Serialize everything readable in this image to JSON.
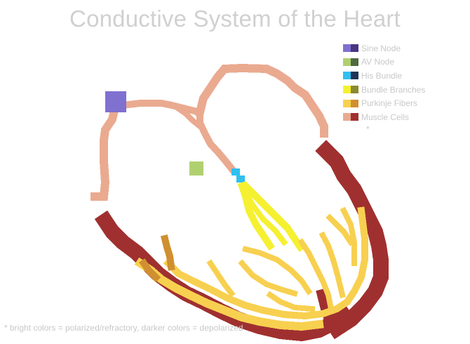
{
  "title": "Conductive System of the Heart",
  "legend": {
    "items": [
      {
        "label": "Sine Node",
        "bright": "#8070d0",
        "dark": "#4a3580"
      },
      {
        "label": "AV Node",
        "bright": "#b0d070",
        "dark": "#4f6a3f"
      },
      {
        "label": "His Bundle",
        "bright": "#30c0f0",
        "dark": "#203555"
      },
      {
        "label": "Bundle Branches",
        "bright": "#f5f030",
        "dark": "#8a8a30"
      },
      {
        "label": "Purkinje Fibers",
        "bright": "#f8d050",
        "dark": "#d09030"
      },
      {
        "label": "Muscle Cells",
        "bright": "#eaaa90",
        "dark": "#a03030"
      }
    ],
    "asterisk": "*"
  },
  "footnote": "* bright colors = polarized/refractory, darker colors = depolarized",
  "colors": {
    "title": "#d0d0d0",
    "text": "#c8c8c8",
    "muscle_bright": "#eaaa90",
    "muscle_dark": "#a03030",
    "sine": "#8070d0",
    "av": "#b0d070",
    "his": "#30c0f0",
    "branches": "#f5f030",
    "purkinje_bright": "#f8d050",
    "purkinje_dark": "#d09030"
  }
}
